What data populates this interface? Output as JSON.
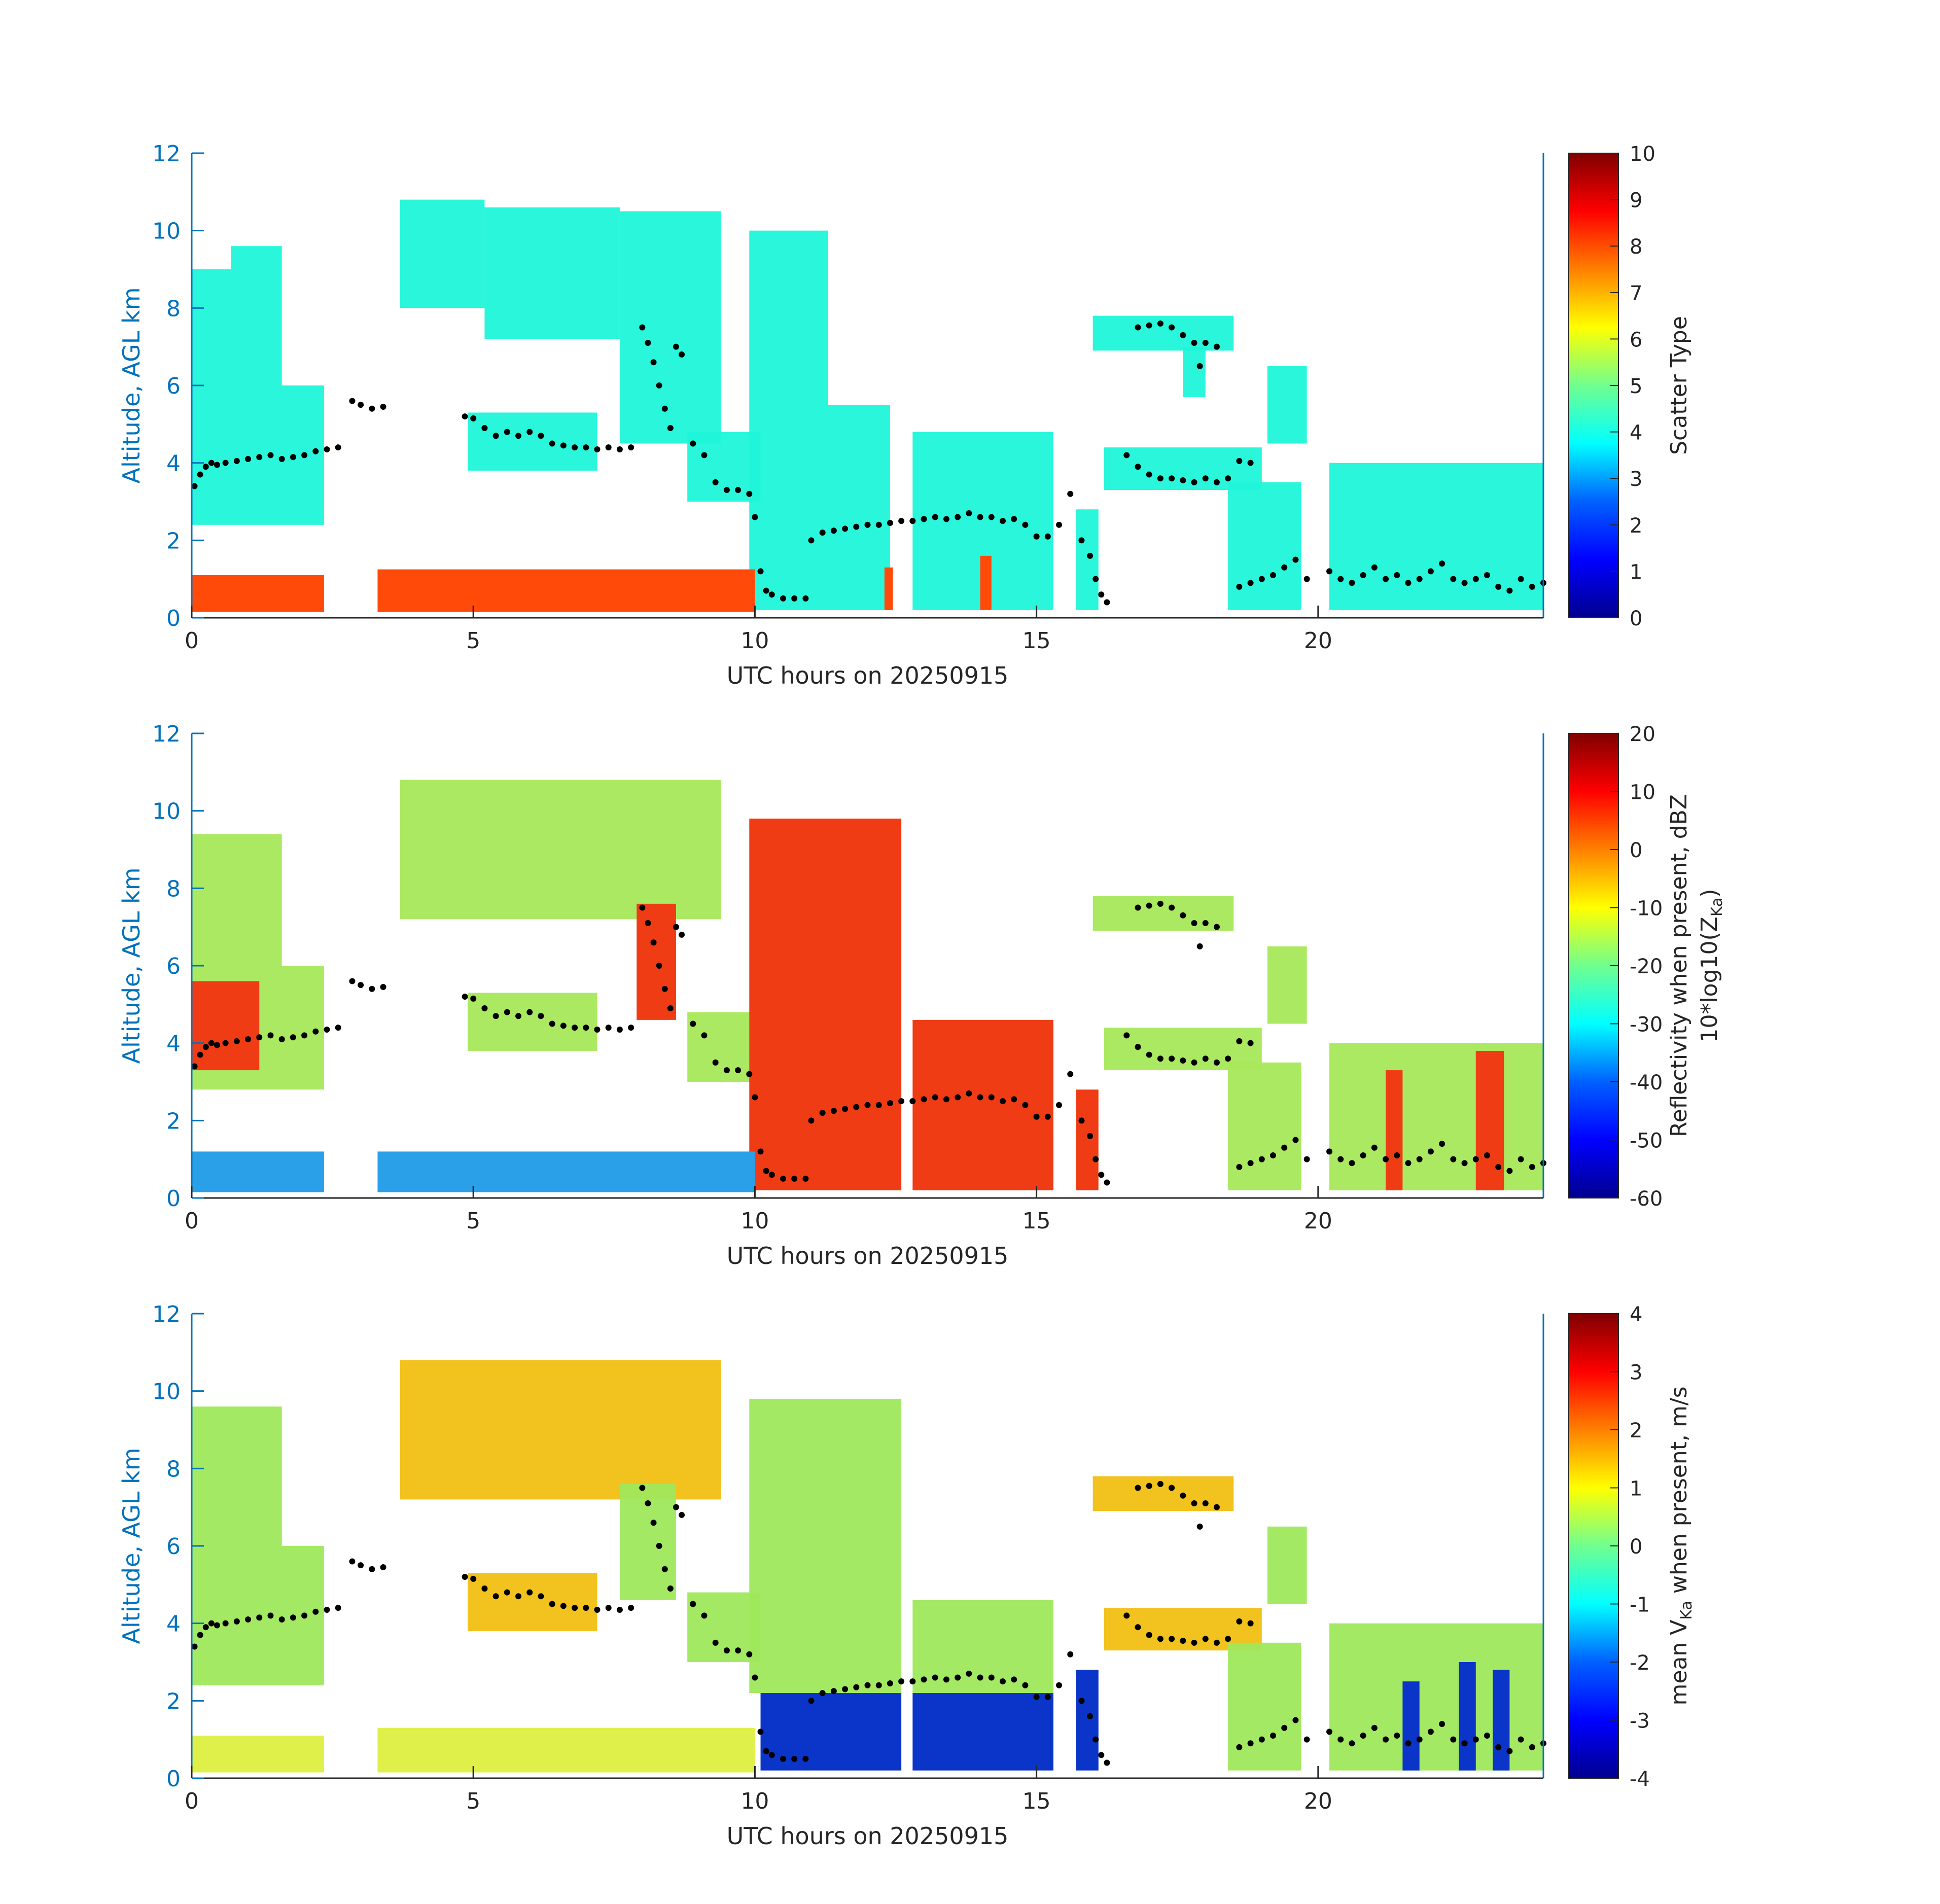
{
  "figure": {
    "background": "#ffffff"
  },
  "colors": {
    "axis_left": "#0072BD",
    "axis_bottom": "#262626",
    "tick_text": "#262626",
    "cloud_base_marker": "#000000"
  },
  "chart_data": [
    {
      "type": "heatmap",
      "id": "scatter-type",
      "xlabel": "UTC hours on 20250915",
      "ylabel": "Altitude, AGL km",
      "xlim": [
        0,
        24
      ],
      "ylim": [
        0,
        12
      ],
      "x_ticks": [
        0,
        5,
        10,
        15,
        20
      ],
      "y_ticks": [
        0,
        2,
        4,
        6,
        8,
        10,
        12
      ],
      "colorbar": {
        "label": "Scatter Type",
        "label_line2": "",
        "clim": [
          0,
          10
        ],
        "ticks": [
          0,
          1,
          2,
          3,
          4,
          5,
          6,
          7,
          8,
          9,
          10
        ],
        "colormap": "jet"
      },
      "fill_colors": {
        "cloud": "#1ff5d9",
        "precip": "#ff4a0a"
      },
      "regions": [
        {
          "kind": "cloud",
          "x0": 0.0,
          "x1": 2.35,
          "y0": 2.4,
          "y1": 6.0
        },
        {
          "kind": "cloud",
          "x0": 0.0,
          "x1": 0.7,
          "y0": 6.0,
          "y1": 9.0
        },
        {
          "kind": "cloud",
          "x0": 0.7,
          "x1": 1.6,
          "y0": 6.0,
          "y1": 9.6
        },
        {
          "kind": "cloud",
          "x0": 3.7,
          "x1": 5.2,
          "y0": 8.0,
          "y1": 10.8
        },
        {
          "kind": "cloud",
          "x0": 5.2,
          "x1": 7.6,
          "y0": 7.2,
          "y1": 10.6
        },
        {
          "kind": "cloud",
          "x0": 7.6,
          "x1": 9.4,
          "y0": 4.5,
          "y1": 10.5
        },
        {
          "kind": "cloud",
          "x0": 4.9,
          "x1": 7.2,
          "y0": 3.8,
          "y1": 5.3
        },
        {
          "kind": "cloud",
          "x0": 8.8,
          "x1": 10.1,
          "y0": 3.0,
          "y1": 4.8
        },
        {
          "kind": "cloud",
          "x0": 9.9,
          "x1": 11.3,
          "y0": 0.2,
          "y1": 10.0
        },
        {
          "kind": "cloud",
          "x0": 11.3,
          "x1": 12.4,
          "y0": 0.2,
          "y1": 5.5
        },
        {
          "kind": "cloud",
          "x0": 12.8,
          "x1": 15.3,
          "y0": 0.2,
          "y1": 4.8
        },
        {
          "kind": "cloud",
          "x0": 15.7,
          "x1": 16.1,
          "y0": 0.2,
          "y1": 2.8
        },
        {
          "kind": "cloud",
          "x0": 16.0,
          "x1": 18.5,
          "y0": 6.9,
          "y1": 7.8
        },
        {
          "kind": "cloud",
          "x0": 17.6,
          "x1": 18.0,
          "y0": 5.7,
          "y1": 7.0
        },
        {
          "kind": "cloud",
          "x0": 19.1,
          "x1": 19.8,
          "y0": 4.5,
          "y1": 6.5
        },
        {
          "kind": "cloud",
          "x0": 16.2,
          "x1": 19.0,
          "y0": 3.3,
          "y1": 4.4
        },
        {
          "kind": "cloud",
          "x0": 18.4,
          "x1": 19.7,
          "y0": 0.2,
          "y1": 3.5
        },
        {
          "kind": "cloud",
          "x0": 20.2,
          "x1": 24.0,
          "y0": 0.2,
          "y1": 4.0
        },
        {
          "kind": "precip",
          "x0": 0.0,
          "x1": 2.35,
          "y0": 0.15,
          "y1": 1.1
        },
        {
          "kind": "precip",
          "x0": 3.3,
          "x1": 10.0,
          "y0": 0.15,
          "y1": 1.25
        },
        {
          "kind": "precip",
          "x0": 14.0,
          "x1": 14.2,
          "y0": 0.2,
          "y1": 1.6
        },
        {
          "kind": "precip",
          "x0": 12.3,
          "x1": 12.45,
          "y0": 0.2,
          "y1": 1.3
        }
      ]
    },
    {
      "type": "heatmap",
      "id": "reflectivity",
      "xlabel": "UTC hours on 20250915",
      "ylabel": "Altitude, AGL km",
      "xlim": [
        0,
        24
      ],
      "ylim": [
        0,
        12
      ],
      "x_ticks": [
        0,
        5,
        10,
        15,
        20
      ],
      "y_ticks": [
        0,
        2,
        4,
        6,
        8,
        10,
        12
      ],
      "colorbar": {
        "label": "Reflectivity when present, dBZ",
        "label_line2": "10*log10(Z",
        "label_line2_sub": "Ka",
        "label_line2_end": ")",
        "clim": [
          -60,
          20
        ],
        "ticks": [
          -60,
          -50,
          -40,
          -30,
          -20,
          -10,
          0,
          10,
          20
        ],
        "colormap": "jet"
      },
      "fill_colors": {
        "cloud": "#a8e85a",
        "core": "#f03c14",
        "precip": "#2aa0e8"
      },
      "regions": [
        {
          "kind": "cloud",
          "x0": 0.0,
          "x1": 2.35,
          "y0": 2.8,
          "y1": 6.0
        },
        {
          "kind": "cloud",
          "x0": 0.0,
          "x1": 1.6,
          "y0": 6.0,
          "y1": 9.4
        },
        {
          "kind": "core",
          "x0": 0.0,
          "x1": 1.2,
          "y0": 3.3,
          "y1": 5.6
        },
        {
          "kind": "cloud",
          "x0": 3.7,
          "x1": 9.4,
          "y0": 7.2,
          "y1": 10.8
        },
        {
          "kind": "core",
          "x0": 7.9,
          "x1": 8.6,
          "y0": 4.6,
          "y1": 7.6
        },
        {
          "kind": "cloud",
          "x0": 4.9,
          "x1": 7.2,
          "y0": 3.8,
          "y1": 5.3
        },
        {
          "kind": "cloud",
          "x0": 8.8,
          "x1": 10.1,
          "y0": 3.0,
          "y1": 4.8
        },
        {
          "kind": "core",
          "x0": 9.9,
          "x1": 12.6,
          "y0": 0.2,
          "y1": 9.8
        },
        {
          "kind": "core",
          "x0": 12.8,
          "x1": 15.3,
          "y0": 0.2,
          "y1": 4.6
        },
        {
          "kind": "core",
          "x0": 15.7,
          "x1": 16.1,
          "y0": 0.2,
          "y1": 2.8
        },
        {
          "kind": "cloud",
          "x0": 16.0,
          "x1": 18.5,
          "y0": 6.9,
          "y1": 7.8
        },
        {
          "kind": "cloud",
          "x0": 19.1,
          "x1": 19.8,
          "y0": 4.5,
          "y1": 6.5
        },
        {
          "kind": "cloud",
          "x0": 16.2,
          "x1": 19.0,
          "y0": 3.3,
          "y1": 4.4
        },
        {
          "kind": "cloud",
          "x0": 18.4,
          "x1": 19.7,
          "y0": 0.2,
          "y1": 3.5
        },
        {
          "kind": "cloud",
          "x0": 20.2,
          "x1": 24.0,
          "y0": 0.2,
          "y1": 4.0
        },
        {
          "kind": "core",
          "x0": 21.2,
          "x1": 21.5,
          "y0": 0.2,
          "y1": 3.3
        },
        {
          "kind": "core",
          "x0": 22.8,
          "x1": 23.3,
          "y0": 0.2,
          "y1": 3.8
        },
        {
          "kind": "precip",
          "x0": 0.0,
          "x1": 2.35,
          "y0": 0.15,
          "y1": 1.2
        },
        {
          "kind": "precip",
          "x0": 3.3,
          "x1": 10.0,
          "y0": 0.15,
          "y1": 1.2
        }
      ]
    },
    {
      "type": "heatmap",
      "id": "doppler-velocity",
      "xlabel": "UTC hours on 20250915",
      "ylabel": "Altitude, AGL km",
      "xlim": [
        0,
        24
      ],
      "ylim": [
        0,
        12
      ],
      "x_ticks": [
        0,
        5,
        10,
        15,
        20
      ],
      "y_ticks": [
        0,
        2,
        4,
        6,
        8,
        10,
        12
      ],
      "colorbar": {
        "label_pre": "mean V",
        "label_sub": "Ka",
        "label_post": " when present, m/s",
        "label_line2": "",
        "clim": [
          -4,
          4
        ],
        "ticks": [
          -4,
          -3,
          -2,
          -1,
          0,
          1,
          2,
          3,
          4
        ],
        "colormap": "jet"
      },
      "fill_colors": {
        "cloud": "#9fe85c",
        "warm": "#f2c21f",
        "fall": "#0a35c8",
        "precip": "#dff04a"
      },
      "regions": [
        {
          "kind": "cloud",
          "x0": 0.0,
          "x1": 2.35,
          "y0": 2.4,
          "y1": 6.0
        },
        {
          "kind": "cloud",
          "x0": 0.0,
          "x1": 1.6,
          "y0": 6.0,
          "y1": 9.6
        },
        {
          "kind": "warm",
          "x0": 3.7,
          "x1": 9.4,
          "y0": 7.2,
          "y1": 10.8
        },
        {
          "kind": "cloud",
          "x0": 7.6,
          "x1": 8.6,
          "y0": 4.6,
          "y1": 7.6
        },
        {
          "kind": "warm",
          "x0": 4.9,
          "x1": 7.2,
          "y0": 3.8,
          "y1": 5.3
        },
        {
          "kind": "cloud",
          "x0": 8.8,
          "x1": 10.1,
          "y0": 3.0,
          "y1": 4.8
        },
        {
          "kind": "cloud",
          "x0": 9.9,
          "x1": 12.6,
          "y0": 2.2,
          "y1": 9.8
        },
        {
          "kind": "cloud",
          "x0": 12.8,
          "x1": 15.3,
          "y0": 2.2,
          "y1": 4.6
        },
        {
          "kind": "fall",
          "x0": 10.1,
          "x1": 12.6,
          "y0": 0.2,
          "y1": 2.2
        },
        {
          "kind": "fall",
          "x0": 12.8,
          "x1": 15.3,
          "y0": 0.2,
          "y1": 2.2
        },
        {
          "kind": "fall",
          "x0": 15.7,
          "x1": 16.1,
          "y0": 0.2,
          "y1": 2.8
        },
        {
          "kind": "warm",
          "x0": 16.0,
          "x1": 18.5,
          "y0": 6.9,
          "y1": 7.8
        },
        {
          "kind": "cloud",
          "x0": 19.1,
          "x1": 19.8,
          "y0": 4.5,
          "y1": 6.5
        },
        {
          "kind": "warm",
          "x0": 16.2,
          "x1": 19.0,
          "y0": 3.3,
          "y1": 4.4
        },
        {
          "kind": "cloud",
          "x0": 18.4,
          "x1": 19.7,
          "y0": 0.2,
          "y1": 3.5
        },
        {
          "kind": "cloud",
          "x0": 20.2,
          "x1": 24.0,
          "y0": 0.2,
          "y1": 4.0
        },
        {
          "kind": "fall",
          "x0": 21.5,
          "x1": 21.8,
          "y0": 0.2,
          "y1": 2.5
        },
        {
          "kind": "fall",
          "x0": 22.5,
          "x1": 22.8,
          "y0": 0.2,
          "y1": 3.0
        },
        {
          "kind": "fall",
          "x0": 23.1,
          "x1": 23.4,
          "y0": 0.2,
          "y1": 2.8
        },
        {
          "kind": "precip",
          "x0": 0.0,
          "x1": 2.35,
          "y0": 0.15,
          "y1": 1.1
        },
        {
          "kind": "precip",
          "x0": 3.3,
          "x1": 10.0,
          "y0": 0.15,
          "y1": 1.3
        }
      ]
    }
  ],
  "cloud_base_points": {
    "x": [
      0.05,
      0.15,
      0.25,
      0.35,
      0.45,
      0.6,
      0.8,
      1.0,
      1.2,
      1.4,
      1.6,
      1.8,
      2.0,
      2.2,
      2.4,
      2.6,
      2.85,
      3.0,
      3.2,
      3.4,
      4.85,
      5.0,
      5.2,
      5.4,
      5.6,
      5.8,
      6.0,
      6.2,
      6.4,
      6.6,
      6.8,
      7.0,
      7.2,
      7.4,
      7.6,
      7.8,
      8.0,
      8.1,
      8.2,
      8.3,
      8.4,
      8.5,
      8.6,
      8.7,
      8.9,
      9.1,
      9.3,
      9.5,
      9.7,
      9.9,
      10.0,
      10.1,
      10.2,
      10.3,
      10.5,
      10.7,
      10.9,
      11.0,
      11.2,
      11.4,
      11.6,
      11.8,
      12.0,
      12.2,
      12.4,
      12.6,
      12.8,
      13.0,
      13.2,
      13.4,
      13.6,
      13.8,
      14.0,
      14.2,
      14.4,
      14.6,
      14.8,
      15.0,
      15.2,
      15.4,
      15.6,
      15.8,
      15.95,
      16.05,
      16.15,
      16.25,
      16.6,
      16.8,
      17.0,
      17.2,
      17.4,
      17.6,
      17.8,
      18.0,
      18.2,
      18.4,
      18.6,
      18.8,
      16.8,
      17.0,
      17.2,
      17.4,
      17.6,
      17.8,
      17.9,
      18.0,
      18.2,
      18.6,
      18.8,
      19.0,
      19.2,
      19.4,
      19.6,
      19.8,
      20.2,
      20.4,
      20.6,
      20.8,
      21.0,
      21.2,
      21.4,
      21.6,
      21.8,
      22.0,
      22.2,
      22.4,
      22.6,
      22.8,
      23.0,
      23.2,
      23.4,
      23.6,
      23.8,
      24.0
    ],
    "y": [
      3.4,
      3.7,
      3.9,
      4.0,
      3.95,
      4.0,
      4.05,
      4.1,
      4.15,
      4.2,
      4.1,
      4.15,
      4.2,
      4.3,
      4.35,
      4.4,
      5.6,
      5.5,
      5.4,
      5.45,
      5.2,
      5.15,
      4.9,
      4.7,
      4.8,
      4.7,
      4.8,
      4.7,
      4.5,
      4.45,
      4.4,
      4.4,
      4.35,
      4.4,
      4.35,
      4.4,
      7.5,
      7.1,
      6.6,
      6.0,
      5.4,
      4.9,
      7.0,
      6.8,
      4.5,
      4.2,
      3.5,
      3.3,
      3.3,
      3.2,
      2.6,
      1.2,
      0.7,
      0.6,
      0.5,
      0.5,
      0.5,
      2.0,
      2.2,
      2.25,
      2.3,
      2.35,
      2.4,
      2.4,
      2.45,
      2.5,
      2.5,
      2.55,
      2.6,
      2.55,
      2.6,
      2.7,
      2.6,
      2.6,
      2.5,
      2.55,
      2.4,
      2.1,
      2.1,
      2.4,
      3.2,
      2.0,
      1.6,
      1.0,
      0.6,
      0.4,
      4.2,
      3.9,
      3.7,
      3.6,
      3.6,
      3.55,
      3.5,
      3.6,
      3.5,
      3.6,
      4.05,
      4.0,
      7.5,
      7.55,
      7.6,
      7.5,
      7.3,
      7.1,
      6.5,
      7.1,
      7.0,
      0.8,
      0.9,
      1.0,
      1.1,
      1.3,
      1.5,
      1.0,
      1.2,
      1.0,
      0.9,
      1.1,
      1.3,
      1.0,
      1.1,
      0.9,
      1.0,
      1.2,
      1.4,
      1.0,
      0.9,
      1.0,
      1.1,
      0.8,
      0.7,
      1.0,
      0.8,
      0.9
    ]
  }
}
